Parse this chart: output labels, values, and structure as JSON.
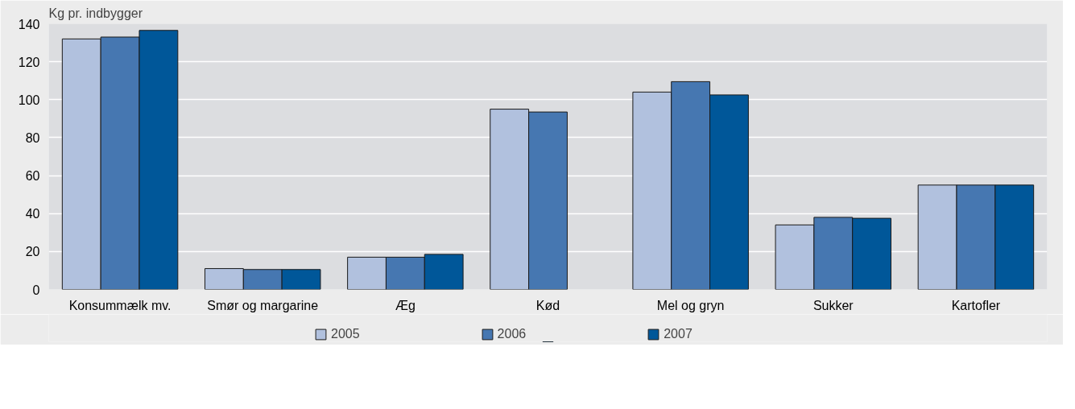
{
  "chart_data": {
    "type": "bar",
    "ylabel": "Kg pr. indbygger",
    "categories": [
      "Konsummælk mv.",
      "Smør og margarine",
      "Æg",
      "Kød",
      "Mel og gryn",
      "Sukker",
      "Kartofler"
    ],
    "series": [
      {
        "name": "2005",
        "color": "#b1c1de",
        "values": [
          132,
          11,
          17,
          95,
          104,
          34,
          55
        ]
      },
      {
        "name": "2006",
        "color": "#4677b1",
        "values": [
          133,
          10.5,
          17,
          93.5,
          109.5,
          38,
          55
        ]
      },
      {
        "name": "2007",
        "color": "#005799",
        "values": [
          136.5,
          10.5,
          18.5,
          null,
          102.5,
          37.5,
          55
        ]
      }
    ],
    "ylim": [
      0,
      140
    ],
    "yticks": [
      0,
      20,
      40,
      60,
      80,
      100,
      120,
      140
    ],
    "grid": "y",
    "legend": "bottom"
  }
}
